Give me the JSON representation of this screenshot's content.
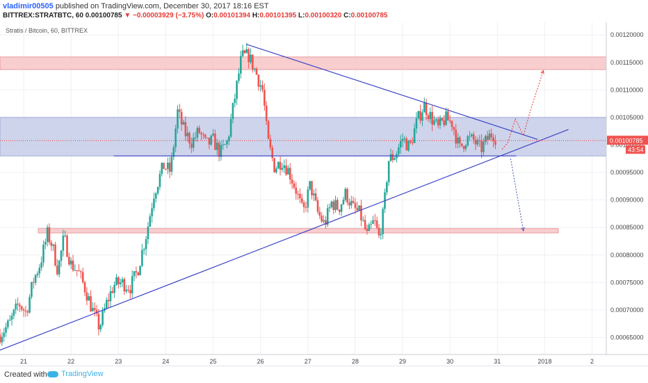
{
  "header": {
    "author": "vladimir00505",
    "published_text": "published on TradingView.com, December 30, 2017 18:16 EST",
    "symbol_line": "BITTREX:STRATBTC, 60  0.00100785",
    "change": "▼ −0.00003929 (−3.75%)",
    "o_label": "O:",
    "o_value": "0.00101394",
    "h_label": "H:",
    "h_value": "0.00101395",
    "l_label": "L:",
    "l_value": "0.00100320",
    "c_label": "C:",
    "c_value": "0.00100785"
  },
  "footer": {
    "created_with": "Created with",
    "brand": "TradingView"
  },
  "chart_data": {
    "type": "candlestick",
    "title": "Stratis / Bitcoin, 60, BITTREX",
    "x_ticks": [
      "21",
      "22",
      "23",
      "24",
      "25",
      "26",
      "27",
      "28",
      "29",
      "30",
      "31",
      "2018",
      "2"
    ],
    "y_ticks": [
      "0.00120000",
      "0.00115000",
      "0.00110000",
      "0.00105000",
      "0.00100000",
      "0.00095000",
      "0.00090000",
      "0.00085000",
      "0.00080000",
      "0.00075000",
      "0.00070000",
      "0.00065000"
    ],
    "ylim": [
      0.000619,
      0.001223
    ],
    "xlim_days": [
      20.5,
      33.3
    ],
    "last_price_label": "0.00100785",
    "countdown_label": "43:54",
    "zones": [
      {
        "name": "resistance",
        "y_low": 0.001137,
        "y_high": 0.00116,
        "color": "#f7c6c7"
      },
      {
        "name": "range",
        "y_low": 0.00098,
        "y_high": 0.00105,
        "color": "#c5cde8"
      },
      {
        "name": "support",
        "y_low": 0.00084,
        "y_high": 0.000848,
        "color": "#f7c6c7"
      }
    ],
    "trendlines": [
      {
        "from": [
          20.5,
          0.000627
        ],
        "to": [
          32.5,
          0.001028
        ]
      },
      {
        "from": [
          25.7,
          0.001183
        ],
        "to": [
          31.85,
          0.00101
        ]
      },
      {
        "from": [
          22.9,
          0.00098
        ],
        "to": [
          31.4,
          0.00098
        ]
      }
    ],
    "projection_paths": [
      {
        "points": [
          [
            31.1,
            0.000992
          ],
          [
            31.22,
            0.001004
          ],
          [
            31.38,
            0.001047
          ],
          [
            31.55,
            0.001017
          ],
          [
            31.7,
            0.001063
          ],
          [
            31.97,
            0.001135
          ]
        ],
        "color": "#e53935"
      },
      {
        "points": [
          [
            31.28,
            0.000975
          ],
          [
            31.55,
            0.000844
          ]
        ],
        "color": "#3f51b5"
      }
    ],
    "candle_path": [
      [
        20.5,
        0.000655
      ],
      [
        20.7,
        0.000675
      ],
      [
        20.9,
        0.000712
      ],
      [
        21.05,
        0.000695
      ],
      [
        21.2,
        0.000752
      ],
      [
        21.35,
        0.000785
      ],
      [
        21.5,
        0.000838
      ],
      [
        21.6,
        0.000818
      ],
      [
        21.72,
        0.000772
      ],
      [
        21.85,
        0.000832
      ],
      [
        22.0,
        0.000783
      ],
      [
        22.15,
        0.00077
      ],
      [
        22.3,
        0.000738
      ],
      [
        22.45,
        0.0007
      ],
      [
        22.6,
        0.000668
      ],
      [
        22.75,
        0.000712
      ],
      [
        22.9,
        0.000745
      ],
      [
        23.05,
        0.00075
      ],
      [
        23.25,
        0.000742
      ],
      [
        23.4,
        0.00077
      ],
      [
        23.6,
        0.000842
      ],
      [
        23.75,
        0.000912
      ],
      [
        23.95,
        0.000962
      ],
      [
        24.1,
        0.000952
      ],
      [
        24.25,
        0.00106
      ],
      [
        24.4,
        0.001022
      ],
      [
        24.55,
        0.001005
      ],
      [
        24.7,
        0.001025
      ],
      [
        24.85,
        0.001
      ],
      [
        25.0,
        0.001008
      ],
      [
        25.15,
        0.000985
      ],
      [
        25.3,
        0.001005
      ],
      [
        25.45,
        0.001082
      ],
      [
        25.6,
        0.00116
      ],
      [
        25.75,
        0.001162
      ],
      [
        25.9,
        0.001132
      ],
      [
        26.05,
        0.001098
      ],
      [
        26.15,
        0.001008
      ],
      [
        26.3,
        0.000958
      ],
      [
        26.45,
        0.000972
      ],
      [
        26.6,
        0.000952
      ],
      [
        26.75,
        0.000918
      ],
      [
        26.9,
        0.000875
      ],
      [
        27.05,
        0.000928
      ],
      [
        27.2,
        0.000878
      ],
      [
        27.35,
        0.000855
      ],
      [
        27.5,
        0.000895
      ],
      [
        27.65,
        0.000885
      ],
      [
        27.8,
        0.000912
      ],
      [
        27.95,
        0.000885
      ],
      [
        28.1,
        0.000875
      ],
      [
        28.25,
        0.000835
      ],
      [
        28.4,
        0.000862
      ],
      [
        28.5,
        0.000832
      ],
      [
        28.6,
        0.000878
      ],
      [
        28.7,
        0.000972
      ],
      [
        28.85,
        0.000982
      ],
      [
        29.0,
        0.001012
      ],
      [
        29.15,
        0.000995
      ],
      [
        29.3,
        0.001042
      ],
      [
        29.45,
        0.001072
      ],
      [
        29.6,
        0.00105
      ],
      [
        29.75,
        0.00103
      ],
      [
        29.9,
        0.001048
      ],
      [
        30.05,
        0.00104
      ],
      [
        30.2,
        0.000992
      ],
      [
        30.35,
        0.001012
      ],
      [
        30.5,
        0.001008
      ],
      [
        30.65,
        0.000992
      ],
      [
        30.8,
        0.001012
      ],
      [
        30.9,
        0.001022
      ],
      [
        31.0,
        0.001008
      ]
    ]
  }
}
